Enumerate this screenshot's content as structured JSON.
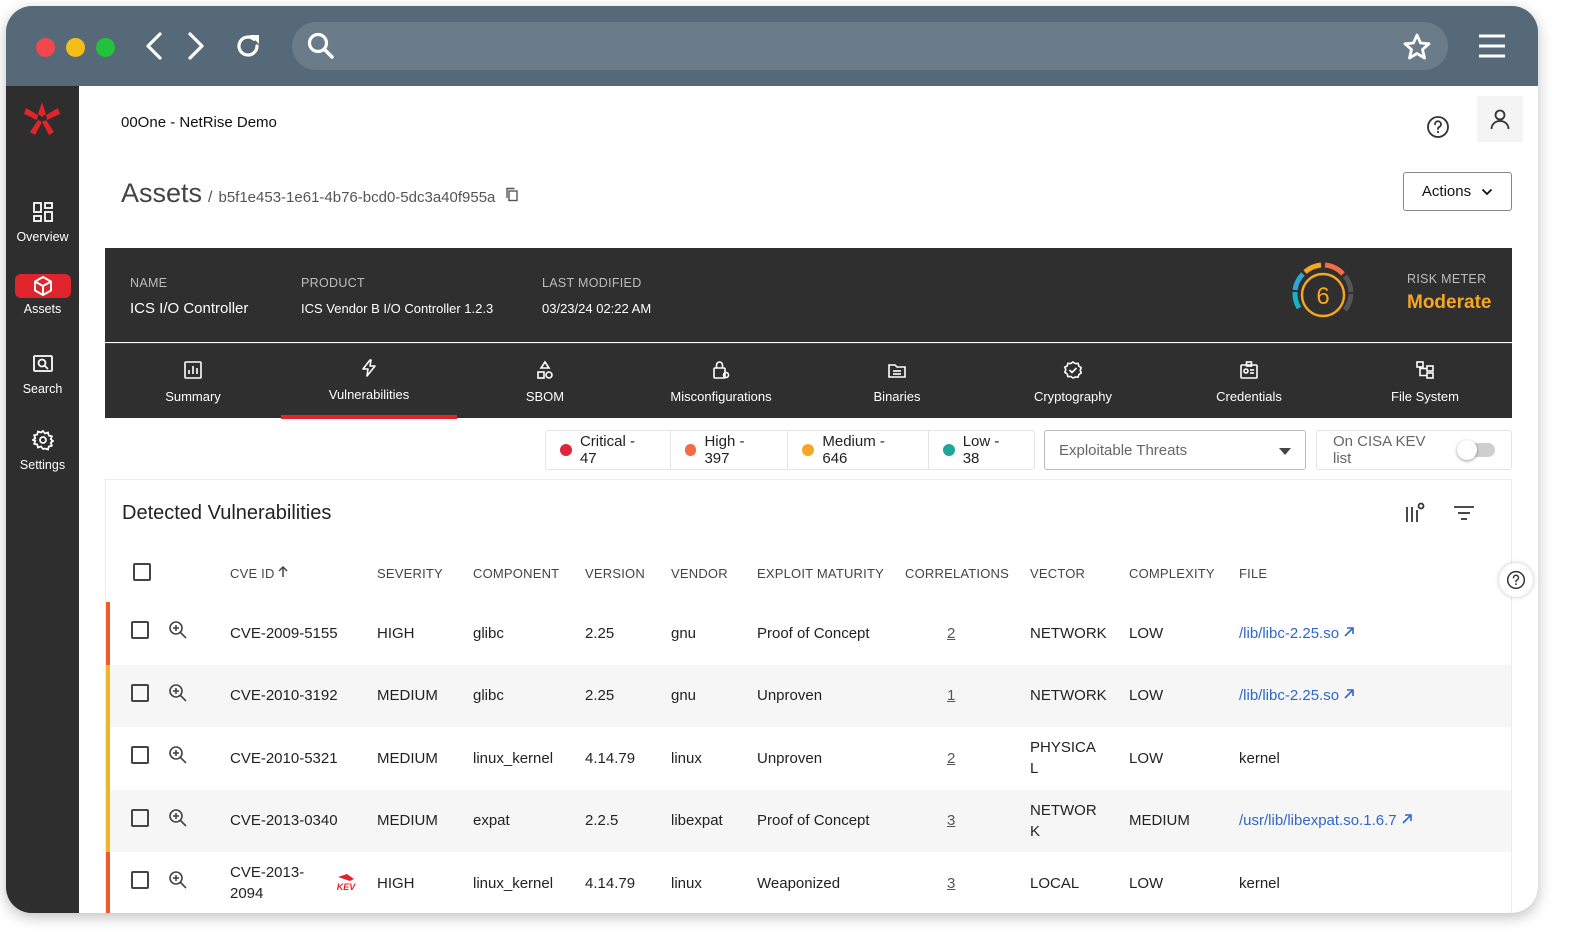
{
  "browser": {
    "url": ""
  },
  "sidebar": {
    "items": [
      {
        "label": "Overview",
        "icon": "overview-icon"
      },
      {
        "label": "Assets",
        "icon": "cube-icon"
      },
      {
        "label": "Search",
        "icon": "search-icon"
      },
      {
        "label": "Settings",
        "icon": "gear-icon"
      }
    ]
  },
  "header": {
    "org": "00One - NetRise Demo"
  },
  "breadcrumb": {
    "title": "Assets",
    "sep": "/",
    "asset_id": "b5f1e453-1e61-4b76-bcd0-5dc3a40f955a"
  },
  "actions_label": "Actions",
  "asset": {
    "name_label": "NAME",
    "name": "ICS I/O Controller",
    "product_label": "PRODUCT",
    "product": "ICS Vendor B I/O Controller 1.2.3",
    "modified_label": "LAST MODIFIED",
    "modified": "03/23/24 02:22 AM",
    "risk_value": "6",
    "risk_label": "RISK METER",
    "risk_level": "Moderate"
  },
  "tabs": [
    {
      "label": "Summary"
    },
    {
      "label": "Vulnerabilities"
    },
    {
      "label": "SBOM"
    },
    {
      "label": "Misconfigurations"
    },
    {
      "label": "Binaries"
    },
    {
      "label": "Cryptography"
    },
    {
      "label": "Credentials"
    },
    {
      "label": "File System"
    }
  ],
  "severity": [
    {
      "label": "Critical - 47",
      "color": "#e0243b"
    },
    {
      "label": "High - 397",
      "color": "#f26b45"
    },
    {
      "label": "Medium - 646",
      "color": "#f5a623"
    },
    {
      "label": "Low - 38",
      "color": "#1fa59a"
    }
  ],
  "filter": {
    "threats": "Exploitable Threats",
    "kev_label": "On CISA KEV list"
  },
  "vulns": {
    "title": "Detected Vulnerabilities",
    "columns": [
      "CVE ID",
      "SEVERITY",
      "COMPONENT",
      "VERSION",
      "VENDOR",
      "EXPLOIT MATURITY",
      "CORRELATIONS",
      "VECTOR",
      "COMPLEXITY",
      "FILE"
    ],
    "rows": [
      {
        "cve": "CVE-2009-5155",
        "severity": "HIGH",
        "component": "glibc",
        "version": "2.25",
        "vendor": "gnu",
        "maturity": "Proof of Concept",
        "corr": "2",
        "vector": "NETWORK",
        "complexity": "LOW",
        "file": "/lib/libc-2.25.so",
        "link": true
      },
      {
        "cve": "CVE-2010-3192",
        "severity": "MEDIUM",
        "component": "glibc",
        "version": "2.25",
        "vendor": "gnu",
        "maturity": "Unproven",
        "corr": "1",
        "vector": "NETWORK",
        "complexity": "LOW",
        "file": "/lib/libc-2.25.so",
        "link": true
      },
      {
        "cve": "CVE-2010-5321",
        "severity": "MEDIUM",
        "component": "linux_kernel",
        "version": "4.14.79",
        "vendor": "linux",
        "maturity": "Unproven",
        "corr": "2",
        "vector": "PHYSICAL",
        "complexity": "LOW",
        "file": "kernel",
        "link": false
      },
      {
        "cve": "CVE-2013-0340",
        "severity": "MEDIUM",
        "component": "expat",
        "version": "2.2.5",
        "vendor": "libexpat",
        "maturity": "Proof of Concept",
        "corr": "3",
        "vector": "NETWORK",
        "complexity": "MEDIUM",
        "file": "/usr/lib/libexpat.so.1.6.7",
        "link": true
      },
      {
        "cve": "CVE-2013-2094",
        "severity": "HIGH",
        "component": "linux_kernel",
        "version": "4.14.79",
        "vendor": "linux",
        "maturity": "Weaponized",
        "corr": "3",
        "vector": "LOCAL",
        "complexity": "LOW",
        "file": "kernel",
        "link": false,
        "kev": "KEV"
      }
    ]
  }
}
